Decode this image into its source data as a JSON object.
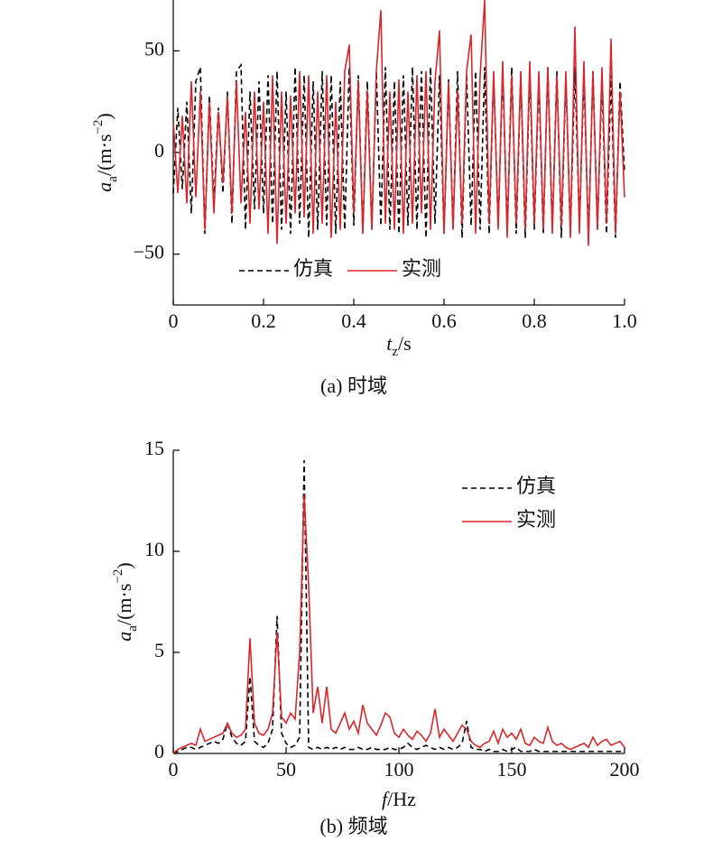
{
  "chart_data": [
    {
      "type": "line",
      "caption": "(a) 时域",
      "xlabel": [
        "t",
        "z",
        "/s"
      ],
      "ylabel": [
        "a",
        "a",
        "/(m·s",
        "−2",
        ")"
      ],
      "xlim": [
        0,
        1
      ],
      "ylim": [
        -75,
        75
      ],
      "xticks": [
        0,
        0.2,
        0.4,
        0.6,
        0.8,
        {
          "value": 1,
          "label": "1.0"
        }
      ],
      "yticks": [
        {
          "value": -50,
          "label": "−50"
        },
        0,
        50
      ],
      "legend": "lower left",
      "x": [
        0,
        0.01,
        0.02,
        0.03,
        0.04,
        0.05,
        0.06,
        0.07,
        0.08,
        0.09,
        0.1,
        0.11,
        0.12,
        0.13,
        0.14,
        0.15,
        0.16,
        0.17,
        0.18,
        0.19,
        0.2,
        0.21,
        0.22,
        0.23,
        0.24,
        0.25,
        0.26,
        0.27,
        0.28,
        0.29,
        0.3,
        0.31,
        0.32,
        0.33,
        0.34,
        0.35,
        0.36,
        0.37,
        0.38,
        0.39,
        0.4,
        0.41,
        0.42,
        0.43,
        0.44,
        0.45,
        0.46,
        0.47,
        0.48,
        0.49,
        0.5,
        0.51,
        0.52,
        0.53,
        0.54,
        0.55,
        0.56,
        0.57,
        0.58,
        0.59,
        0.6,
        0.61,
        0.62,
        0.63,
        0.64,
        0.65,
        0.66,
        0.67,
        0.68,
        0.69,
        0.7,
        0.71,
        0.72,
        0.73,
        0.74,
        0.75,
        0.76,
        0.77,
        0.78,
        0.79,
        0.8,
        0.81,
        0.82,
        0.83,
        0.84,
        0.85,
        0.86,
        0.87,
        0.88,
        0.89,
        0.9,
        0.91,
        0.92,
        0.93,
        0.94,
        0.95,
        0.96,
        0.97,
        0.98,
        0.99,
        1
      ],
      "series": [
        {
          "name": "仿真",
          "color": "#000000",
          "dashed": true,
          "values": [
            -20,
            22,
            -18,
            25,
            -30,
            35,
            42,
            -40,
            28,
            -25,
            22,
            -20,
            30,
            -35,
            40,
            43,
            -38,
            30,
            -28,
            35,
            -30,
            38,
            -35,
            40,
            -38,
            30,
            -40,
            42,
            -35,
            38,
            -42,
            35,
            -38,
            40,
            -36,
            38,
            -40,
            35,
            -38,
            42,
            -36,
            38,
            -40,
            35,
            -38,
            40,
            -36,
            42,
            -38,
            35,
            -40,
            38,
            -36,
            42,
            -38,
            40,
            -42,
            42,
            -35,
            38,
            -40,
            36,
            -38,
            40,
            -42,
            38,
            -36,
            40,
            -38,
            42,
            -40,
            38,
            -36,
            40,
            -38,
            42,
            -40,
            38,
            -42,
            40,
            -38,
            36,
            -40,
            42,
            -38,
            40,
            -42,
            38,
            -40,
            42,
            -36,
            38,
            -42,
            40,
            -38,
            36,
            -40,
            38,
            -42,
            35,
            -10
          ]
        },
        {
          "name": "实测",
          "color": "#d9262b",
          "dashed": false,
          "values": [
            15,
            -20,
            18,
            -25,
            35,
            -22,
            30,
            -38,
            25,
            -30,
            20,
            -15,
            28,
            -30,
            35,
            -25,
            20,
            -35,
            30,
            -28,
            25,
            -40,
            38,
            -45,
            30,
            -35,
            28,
            -30,
            40,
            -32,
            38,
            -40,
            30,
            -35,
            38,
            -42,
            25,
            -38,
            40,
            53,
            -30,
            35,
            -40,
            30,
            -38,
            40,
            70,
            -35,
            30,
            -38,
            36,
            -40,
            30,
            -35,
            38,
            -30,
            40,
            -38,
            35,
            60,
            -40,
            35,
            -38,
            30,
            -35,
            40,
            58,
            -40,
            38,
            75,
            -35,
            40,
            -38,
            45,
            -42,
            38,
            -35,
            40,
            -38,
            45,
            -35,
            40,
            -38,
            42,
            -40,
            38,
            -36,
            40,
            -42,
            62,
            -40,
            45,
            -46,
            40,
            -38,
            42,
            -35,
            56,
            -40,
            30,
            -22
          ]
        }
      ]
    },
    {
      "type": "line",
      "caption": "(b) 频域",
      "xlabel": [
        "f",
        "",
        "/Hz"
      ],
      "ylabel": [
        "a",
        "a",
        "/(m·s",
        "−2",
        ")"
      ],
      "xlim": [
        0,
        200
      ],
      "ylim": [
        0,
        15
      ],
      "xticks": [
        0,
        50,
        100,
        150,
        200
      ],
      "yticks": [
        0,
        5,
        10,
        15
      ],
      "legend": "upper right",
      "x": [
        0,
        2,
        4,
        6,
        8,
        10,
        12,
        14,
        16,
        18,
        20,
        22,
        24,
        26,
        28,
        30,
        32,
        34,
        36,
        38,
        40,
        42,
        44,
        46,
        48,
        50,
        52,
        54,
        56,
        58,
        60,
        62,
        64,
        66,
        68,
        70,
        72,
        74,
        76,
        78,
        80,
        82,
        84,
        86,
        88,
        90,
        92,
        94,
        96,
        98,
        100,
        102,
        104,
        106,
        108,
        110,
        112,
        114,
        116,
        118,
        120,
        122,
        124,
        126,
        128,
        130,
        132,
        134,
        136,
        138,
        140,
        142,
        144,
        146,
        148,
        150,
        152,
        154,
        156,
        158,
        160,
        162,
        164,
        166,
        168,
        170,
        172,
        174,
        176,
        178,
        180,
        182,
        184,
        186,
        188,
        190,
        192,
        194,
        196,
        198,
        200
      ],
      "series": [
        {
          "name": "仿真",
          "color": "#000000",
          "dashed": true,
          "values": [
            0,
            0.1,
            0.2,
            0.3,
            0.3,
            0.2,
            0.3,
            0.4,
            0.5,
            0.6,
            0.5,
            0.7,
            1.5,
            0.8,
            0.5,
            0.4,
            0.6,
            3.8,
            0.6,
            0.4,
            0.3,
            0.5,
            1.2,
            6.8,
            1.0,
            0.5,
            0.3,
            0.4,
            0.8,
            14.5,
            0.3,
            0.2,
            0.3,
            0.2,
            0.3,
            0.2,
            0.3,
            0.2,
            0.3,
            0.2,
            0.2,
            0.3,
            0.2,
            0.2,
            0.3,
            0.2,
            0.2,
            0.2,
            0.3,
            0.2,
            0.2,
            0.3,
            0.5,
            0.3,
            0.2,
            0.3,
            0.4,
            0.3,
            0.2,
            0.3,
            0.2,
            0.3,
            0.2,
            0.3,
            0.5,
            1.6,
            0.3,
            0.2,
            0.2,
            0.1,
            0.2,
            0.1,
            0.1,
            0.2,
            0.1,
            0.2,
            0.3,
            0.1,
            0.1,
            0.1,
            0.2,
            0.1,
            0.1,
            0.1,
            0.1,
            0.1,
            0.1,
            0.1,
            0.1,
            0.1,
            0.1,
            0.1,
            0.1,
            0.1,
            0.1,
            0.1,
            0.1,
            0.1,
            0.1,
            0.1,
            0.1
          ]
        },
        {
          "name": "实测",
          "color": "#d9262b",
          "dashed": false,
          "values": [
            0,
            0.2,
            0.3,
            0.4,
            0.5,
            0.4,
            1.2,
            0.6,
            0.7,
            0.8,
            0.9,
            1.0,
            1.5,
            1.0,
            0.8,
            0.9,
            1.2,
            5.7,
            1.5,
            1.0,
            0.9,
            1.2,
            2.0,
            6.0,
            1.8,
            1.5,
            2.0,
            1.7,
            5.0,
            12.8,
            8.3,
            2.0,
            3.3,
            1.5,
            3.3,
            1.2,
            1.0,
            1.5,
            2.0,
            1.2,
            1.6,
            1.0,
            2.4,
            1.5,
            1.2,
            0.9,
            1.4,
            2.0,
            1.8,
            1.0,
            0.8,
            1.2,
            0.9,
            0.7,
            1.1,
            0.9,
            0.6,
            1.0,
            2.2,
            0.8,
            1.2,
            0.9,
            0.6,
            1.0,
            1.4,
            1.2,
            0.6,
            0.4,
            0.3,
            0.5,
            0.6,
            1.1,
            0.5,
            1.2,
            0.8,
            1.0,
            0.7,
            1.2,
            0.5,
            0.4,
            0.8,
            0.6,
            0.5,
            1.3,
            0.6,
            0.4,
            0.5,
            0.3,
            0.2,
            0.3,
            0.4,
            0.5,
            0.3,
            0.8,
            0.4,
            0.6,
            0.7,
            0.4,
            0.5,
            0.6,
            0.3
          ]
        }
      ]
    }
  ]
}
